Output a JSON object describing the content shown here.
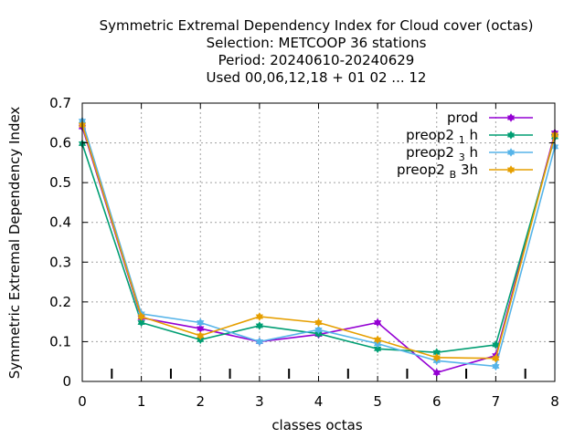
{
  "chart_data": {
    "type": "line",
    "title_lines": [
      "Symmetric Extremal Dependency Index  for Cloud cover (octas)",
      "Selection: METCOOP     36 stations",
      "Period: 20240610-20240629",
      "Used  00,06,12,18 + 01 02 ... 12"
    ],
    "xlabel": "classes octas",
    "ylabel": "Symmetric Extremal Dependency Index",
    "xlim": [
      0,
      8
    ],
    "ylim": [
      0,
      0.7
    ],
    "x_ticks": [
      "0",
      "1",
      "2",
      "3",
      "4",
      "5",
      "6",
      "7",
      "8"
    ],
    "y_ticks": [
      "0",
      "0.1",
      "0.2",
      "0.3",
      "0.4",
      "0.5",
      "0.6",
      "0.7"
    ],
    "minor_markers_x": [
      0.5,
      1.5,
      2.5,
      3.5,
      4.5,
      5.5,
      6.5,
      7.5
    ],
    "grid": true,
    "legend_position": "top-right",
    "x": [
      0,
      1,
      2,
      3,
      4,
      5,
      6,
      7,
      8
    ],
    "series": [
      {
        "name": "prod",
        "color": "#9400d3",
        "values": [
          0.64,
          0.16,
          0.133,
          0.1,
          0.118,
          0.148,
          0.022,
          0.065,
          0.625
        ]
      },
      {
        "name": "preop2",
        "subscript": "1",
        "suffix": "h",
        "color": "#009e73",
        "values": [
          0.598,
          0.148,
          0.105,
          0.14,
          0.12,
          0.082,
          0.073,
          0.092,
          0.615
        ]
      },
      {
        "name": "preop2",
        "subscript": "3",
        "suffix": "h",
        "color": "#56b4e9",
        "values": [
          0.655,
          0.17,
          0.148,
          0.1,
          0.13,
          0.095,
          0.052,
          0.038,
          0.59
        ]
      },
      {
        "name": "preop2",
        "subscript": "B",
        "suffix": "3h",
        "color": "#e69f00",
        "values": [
          0.645,
          0.163,
          0.115,
          0.163,
          0.148,
          0.105,
          0.06,
          0.058,
          0.62
        ]
      }
    ]
  }
}
